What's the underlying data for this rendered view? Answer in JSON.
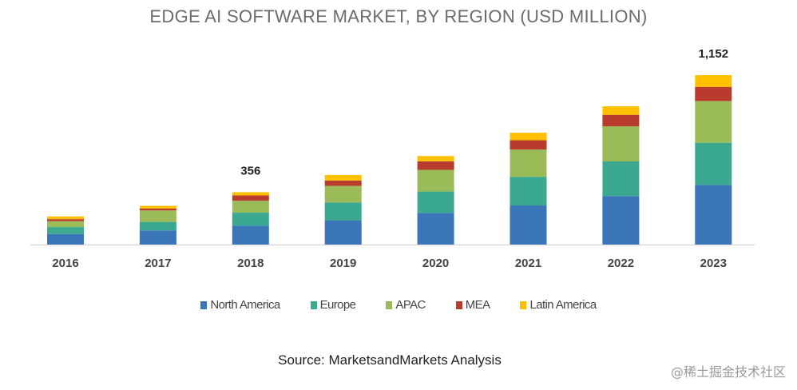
{
  "chart_data": {
    "type": "bar",
    "stacked": true,
    "title": "EDGE AI SOFTWARE MARKET, BY REGION (USD MILLION)",
    "categories": [
      "2016",
      "2017",
      "2018",
      "2019",
      "2020",
      "2021",
      "2022",
      "2023"
    ],
    "series": [
      {
        "name": "North America",
        "color": "#3a75b7",
        "values": [
          72,
          96,
          129,
          165,
          216,
          266,
          330,
          406
        ]
      },
      {
        "name": "Europe",
        "color": "#3aa98f",
        "values": [
          47,
          58,
          88,
          122,
          145,
          195,
          235,
          286
        ]
      },
      {
        "name": "APAC",
        "color": "#9bbb59",
        "values": [
          40,
          78,
          81,
          112,
          147,
          185,
          239,
          284
        ]
      },
      {
        "name": "MEA",
        "color": "#b83b2e",
        "values": [
          14,
          13,
          36,
          36,
          58,
          63,
          78,
          96
        ]
      },
      {
        "name": "Latin America",
        "color": "#ffc000",
        "values": [
          18,
          18,
          22,
          38,
          36,
          51,
          58,
          80
        ]
      }
    ],
    "annotations": [
      {
        "category": "2018",
        "label": "356"
      },
      {
        "category": "2023",
        "label": "1,152"
      }
    ],
    "ylim": [
      0,
      1152
    ],
    "grid": false,
    "legend": "bottom"
  },
  "source": "Source: MarketsandMarkets Analysis",
  "watermark": "@稀土掘金技术社区"
}
